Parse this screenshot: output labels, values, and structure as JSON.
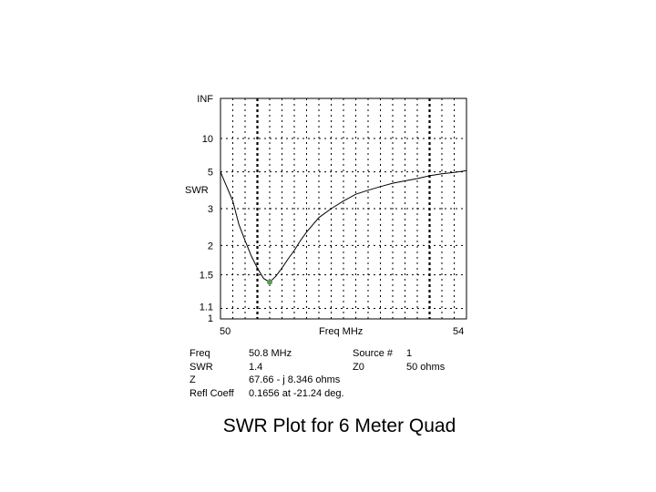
{
  "chart_data": {
    "type": "line",
    "title": "SWR Plot for 6 Meter Quad",
    "xlabel": "Freq MHz",
    "ylabel": "SWR",
    "xlim": [
      50,
      54
    ],
    "x_ticks": [
      "50",
      "54"
    ],
    "y_ticks": [
      "INF",
      "10",
      "5",
      "3",
      "2",
      "1.5",
      "1.1",
      "1"
    ],
    "scale": "reflection-coefficient",
    "grid": true,
    "series": [
      {
        "x": [
          50.0,
          50.1,
          50.2,
          50.3,
          50.4,
          50.5,
          50.6,
          50.7,
          50.8,
          50.9,
          51.0,
          51.1,
          51.2,
          51.3,
          51.4,
          51.6,
          51.8,
          52.0,
          52.2,
          52.4,
          52.6,
          52.8,
          53.0,
          53.2,
          53.4,
          53.6,
          53.8,
          54.0
        ],
        "y": [
          5.0,
          4.0,
          3.3,
          2.5,
          2.1,
          1.8,
          1.6,
          1.45,
          1.4,
          1.48,
          1.6,
          1.75,
          1.9,
          2.1,
          2.3,
          2.7,
          3.0,
          3.3,
          3.6,
          3.8,
          4.0,
          4.2,
          4.35,
          4.5,
          4.7,
          4.85,
          4.95,
          5.1
        ]
      }
    ],
    "marker": {
      "x": 50.8,
      "y": 1.4
    }
  },
  "readout": [
    [
      "Freq",
      "50.8 MHz",
      "Source #",
      "1"
    ],
    [
      "SWR",
      "1.4",
      "Z0",
      "50 ohms"
    ],
    [
      "Z",
      "67.66 - j 8.346 ohms",
      "",
      ""
    ],
    [
      "Refl Coeff",
      "0.1656 at -21.24 deg.",
      "",
      ""
    ]
  ],
  "colors": {
    "line": "#000000",
    "marker": "#5a9a5a",
    "grid": "#000000"
  }
}
